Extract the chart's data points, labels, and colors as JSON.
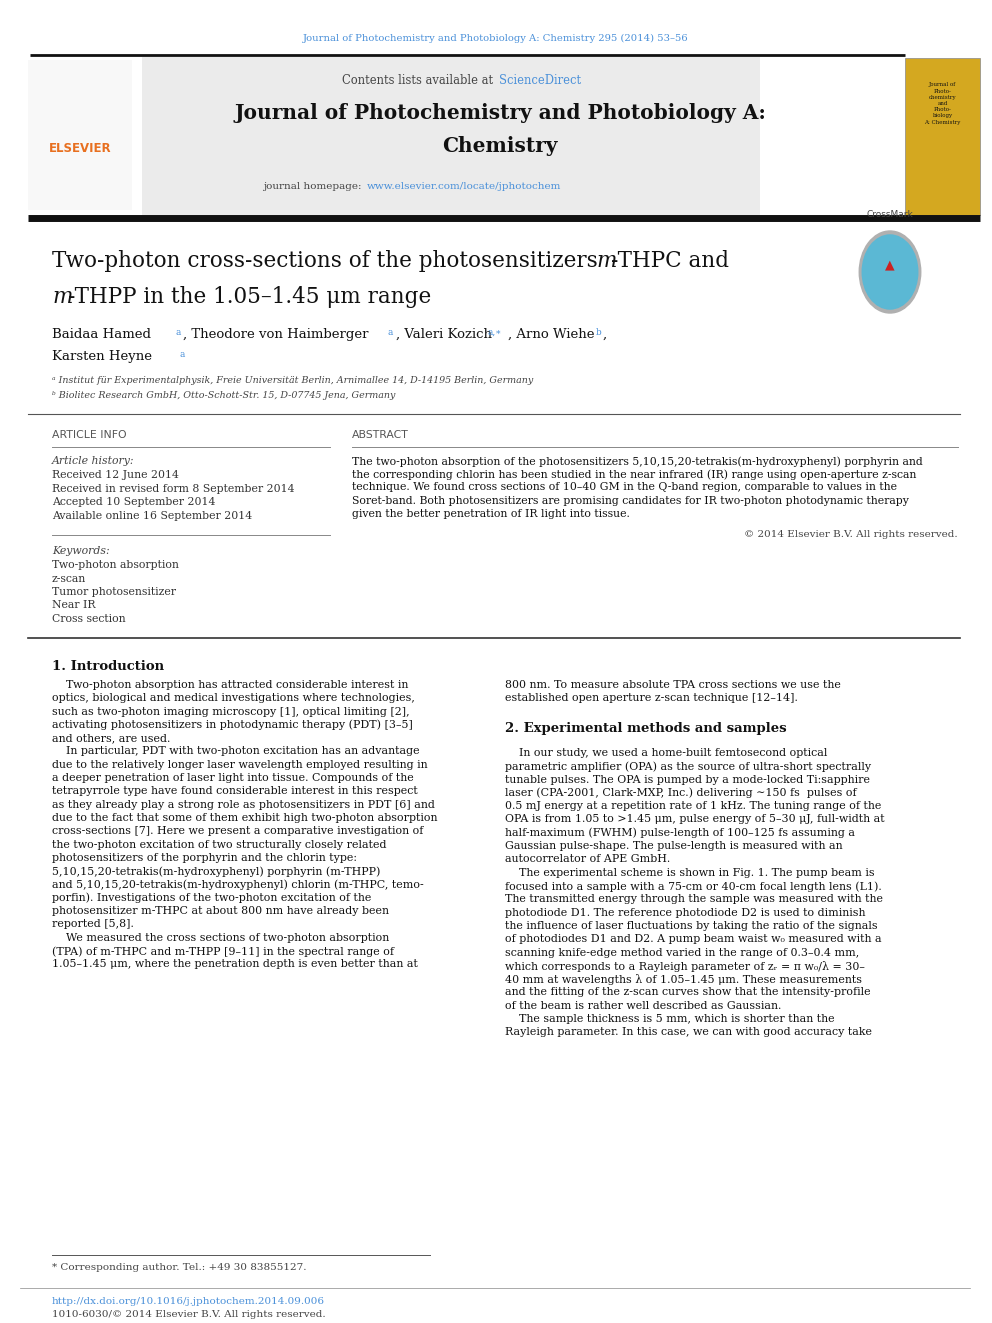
{
  "page_width": 9.92,
  "page_height": 13.23,
  "bg_color": "#ffffff",
  "top_journal_ref": "Journal of Photochemistry and Photobiology A: Chemistry 295 (2014) 53–56",
  "top_journal_ref_color": "#4a90d9",
  "header_sciencedirect_color": "#4a90d9",
  "journal_title_line1": "Journal of Photochemistry and Photobiology A:",
  "journal_title_line2": "Chemistry",
  "journal_homepage_url": "www.elsevier.com/locate/jphotochem",
  "journal_homepage_url_color": "#4a90d9",
  "article_history_lines": [
    "Received 12 June 2014",
    "Received in revised form 8 September 2014",
    "Accepted 10 September 2014",
    "Available online 16 September 2014"
  ],
  "keywords": [
    "Two-photon absorption",
    "z-scan",
    "Tumor photosensitizer",
    "Near IR",
    "Cross section"
  ],
  "abstract_text_lines": [
    "The two-photon absorption of the photosensitizers 5,10,15,20-tetrakis(m-hydroxyphenyl) porphyrin and",
    "the corresponding chlorin has been studied in the near infrared (IR) range using open-aperture z-scan",
    "technique. We found cross sections of 10–40 GM in the Q-band region, comparable to values in the",
    "Soret-band. Both photosensitizers are promising candidates for IR two-photon photodynamic therapy",
    "given the better penetration of IR light into tissue."
  ],
  "copyright": "© 2014 Elsevier B.V. All rights reserved.",
  "doi_text": "http://dx.doi.org/10.1016/j.jphotochem.2014.09.006",
  "doi_color": "#4a90d9",
  "issn_text": "1010-6030/© 2014 Elsevier B.V. All rights reserved.",
  "elsevier_color": "#e87020",
  "header_thick_line_color": "#1a1a1a",
  "intro_left_lines": [
    "    Two-photon absorption has attracted considerable interest in",
    "optics, biological and medical investigations where technologies,",
    "such as two-photon imaging microscopy [1], optical limiting [2],",
    "activating photosensitizers in photodynamic therapy (PDT) [3–5]",
    "and others, are used.",
    "    In particular, PDT with two-photon excitation has an advantage",
    "due to the relatively longer laser wavelength employed resulting in",
    "a deeper penetration of laser light into tissue. Compounds of the",
    "tetrapyrrole type have found considerable interest in this respect",
    "as they already play a strong role as photosensitizers in PDT [6] and",
    "due to the fact that some of them exhibit high two-photon absorption",
    "cross-sections [7]. Here we present a comparative investigation of",
    "the two-photon excitation of two structurally closely related",
    "photosensitizers of the porphyrin and the chlorin type:",
    "5,10,15,20-tetrakis(m-hydroxyphenyl) porphyrin (m-THPP)",
    "and 5,10,15,20-tetrakis(m-hydroxyphenyl) chlorin (m-THPC, temo-",
    "porfin). Investigations of the two-photon excitation of the",
    "photosensitizer m-THPC at about 800 nm have already been",
    "reported [5,8].",
    "    We measured the cross sections of two-photon absorption",
    "(TPA) of m-THPC and m-THPP [9–11] in the spectral range of",
    "1.05–1.45 μm, where the penetration depth is even better than at"
  ],
  "intro_right_lines": [
    "800 nm. To measure absolute TPA cross sections we use the",
    "established open aperture z-scan technique [12–14]."
  ],
  "exp_heading": "2. Experimental methods and samples",
  "exp_lines": [
    "    In our study, we used a home-built femtosecond optical",
    "parametric amplifier (OPA) as the source of ultra-short spectrally",
    "tunable pulses. The OPA is pumped by a mode-locked Ti:sapphire",
    "laser (CPA-2001, Clark-MXP, Inc.) delivering ∼150 fs  pulses of",
    "0.5 mJ energy at a repetition rate of 1 kHz. The tuning range of the",
    "OPA is from 1.05 to >1.45 μm, pulse energy of 5–30 μJ, full-width at",
    "half-maximum (FWHM) pulse-length of 100–125 fs assuming a",
    "Gaussian pulse-shape. The pulse-length is measured with an",
    "autocorrelator of APE GmbH.",
    "    The experimental scheme is shown in Fig. 1. The pump beam is",
    "focused into a sample with a 75-cm or 40-cm focal length lens (L1).",
    "The transmitted energy through the sample was measured with the",
    "photodiode D1. The reference photodiode D2 is used to diminish",
    "the influence of laser fluctuations by taking the ratio of the signals",
    "of photodiodes D1 and D2. A pump beam waist w₀ measured with a",
    "scanning knife-edge method varied in the range of 0.3–0.4 mm,",
    "which corresponds to a Rayleigh parameter of zᵣ = π w₀/λ = 30–",
    "40 mm at wavelengths λ of 1.05–1.45 μm. These measurements",
    "and the fitting of the z-scan curves show that the intensity-profile",
    "of the beam is rather well described as Gaussian.",
    "    The sample thickness is 5 mm, which is shorter than the",
    "Rayleigh parameter. In this case, we can with good accuracy take"
  ]
}
